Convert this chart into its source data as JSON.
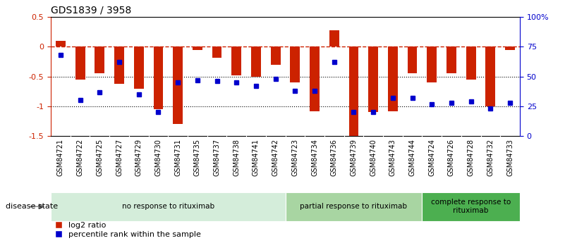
{
  "title": "GDS1839 / 3958",
  "samples": [
    "GSM84721",
    "GSM84722",
    "GSM84725",
    "GSM84727",
    "GSM84729",
    "GSM84730",
    "GSM84731",
    "GSM84735",
    "GSM84737",
    "GSM84738",
    "GSM84741",
    "GSM84742",
    "GSM84723",
    "GSM84734",
    "GSM84736",
    "GSM84739",
    "GSM84740",
    "GSM84743",
    "GSM84744",
    "GSM84724",
    "GSM84726",
    "GSM84728",
    "GSM84732",
    "GSM84733"
  ],
  "log2_ratio": [
    0.1,
    -0.55,
    -0.45,
    -0.62,
    -0.7,
    -1.05,
    -1.3,
    -0.05,
    -0.18,
    -0.48,
    -0.5,
    -0.3,
    -0.6,
    -1.08,
    0.28,
    -1.55,
    -1.1,
    -1.08,
    -0.45,
    -0.6,
    -0.45,
    -0.55,
    -1.0,
    -0.05
  ],
  "percentile_rank": [
    68,
    30,
    37,
    62,
    35,
    20,
    45,
    47,
    46,
    45,
    42,
    48,
    38,
    38,
    62,
    20,
    20,
    32,
    32,
    27,
    28,
    29,
    23,
    28
  ],
  "groups": [
    {
      "label": "no response to rituximab",
      "start": 0,
      "end": 12,
      "color": "#d4edda"
    },
    {
      "label": "partial response to rituximab",
      "start": 12,
      "end": 19,
      "color": "#a8d5a2"
    },
    {
      "label": "complete response to\nrituximab",
      "start": 19,
      "end": 24,
      "color": "#4caf50"
    }
  ],
  "bar_color_red": "#cc2200",
  "dot_color_blue": "#0000cc",
  "ylim_left": [
    -1.5,
    0.5
  ],
  "ylim_right": [
    0,
    100
  ],
  "yticks_left": [
    -1.5,
    -1.0,
    -0.5,
    0.0,
    0.5
  ],
  "ytick_labels_left": [
    "-1.5",
    "-1",
    "-0.5",
    "0",
    "0.5"
  ],
  "yticks_right": [
    0,
    25,
    50,
    75,
    100
  ],
  "ytick_labels_right": [
    "0",
    "25",
    "50",
    "75",
    "100%"
  ],
  "hline_y": 0.0,
  "dotted_lines": [
    -0.5,
    -1.0
  ],
  "disease_state_label": "disease state",
  "legend_items": [
    "log2 ratio",
    "percentile rank within the sample"
  ],
  "bar_width": 0.5,
  "xtick_bg_color": "#d0d0d0"
}
